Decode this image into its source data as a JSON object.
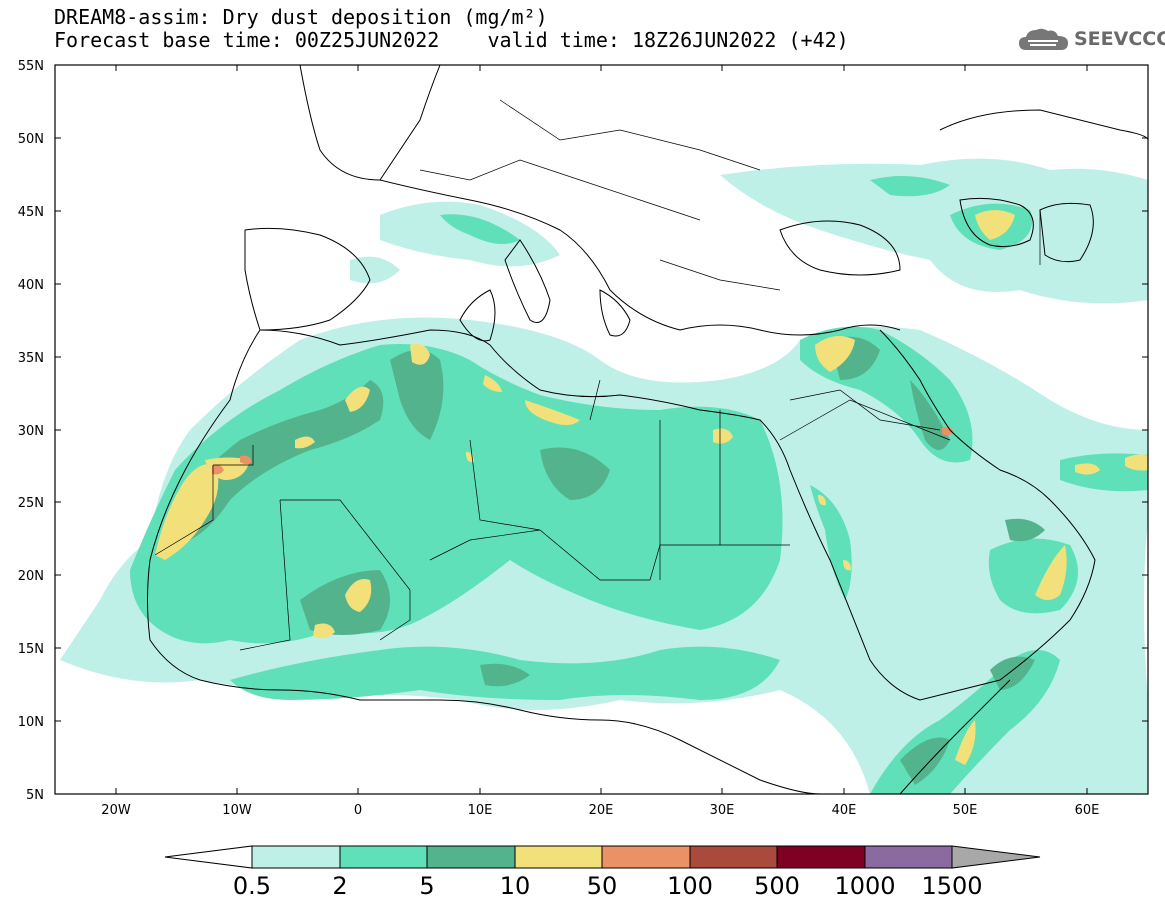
{
  "header": {
    "title_line1": "DREAM8-assim: Dry dust deposition (mg/m²)",
    "title_line2": "Forecast base time: 00Z25JUN2022    valid time: 18Z26JUN2022 (+42)",
    "logo_text": "SEEVCCC"
  },
  "map": {
    "lon_range": [
      -25,
      65
    ],
    "lat_range": [
      5,
      55
    ],
    "lat_labels": [
      "5N",
      "10N",
      "15N",
      "20N",
      "25N",
      "30N",
      "35N",
      "40N",
      "45N",
      "50N",
      "55N"
    ],
    "lon_labels": [
      "20W",
      "10W",
      "0",
      "10E",
      "20E",
      "30E",
      "40E",
      "50E",
      "60E"
    ]
  },
  "legend": {
    "labels": [
      "0.5",
      "2",
      "5",
      "10",
      "50",
      "100",
      "500",
      "1000",
      "1500"
    ],
    "colors": [
      "#ffffff",
      "#bff0e8",
      "#5fe0b8",
      "#53b38c",
      "#f2e17a",
      "#eb9166",
      "#a94a3c",
      "#7e0023",
      "#8a6a9f",
      "#a8a8a8"
    ]
  }
}
